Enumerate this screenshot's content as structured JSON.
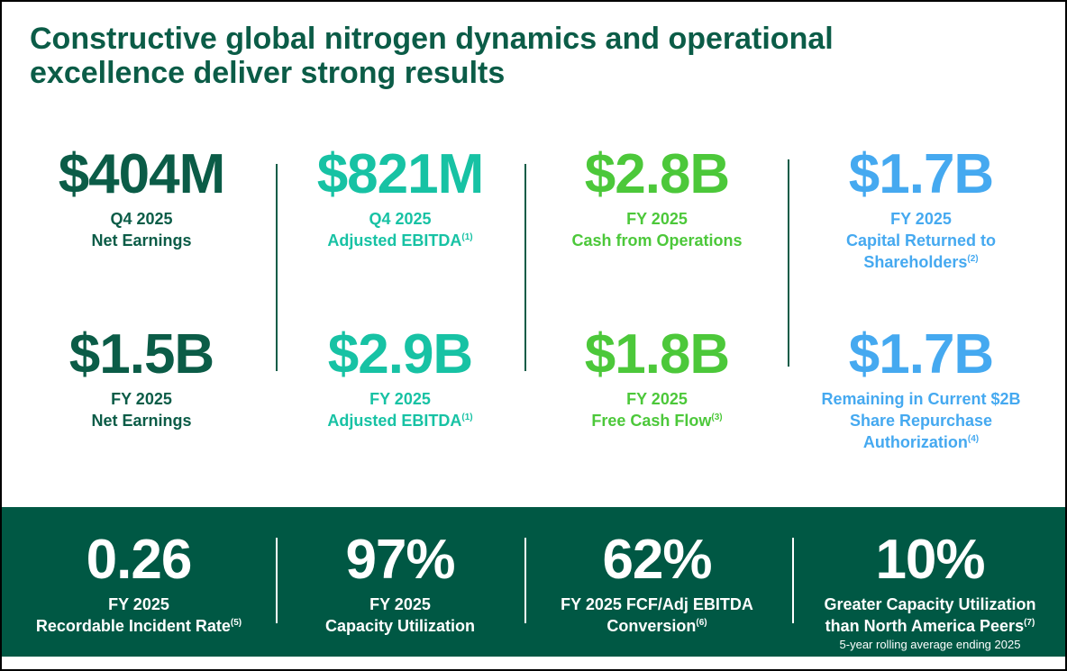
{
  "title": "Constructive global nitrogen dynamics and operational excellence deliver strong results",
  "columns": [
    {
      "metrics": [
        {
          "value": "$404M",
          "lines": [
            "Q4 2025",
            "Net Earnings"
          ]
        },
        {
          "value": "$1.5B",
          "lines": [
            "FY 2025",
            "Net Earnings"
          ]
        }
      ]
    },
    {
      "metrics": [
        {
          "value": "$821M",
          "lines": [
            "Q4 2025",
            "Adjusted EBITDA"
          ],
          "note": "(1)"
        },
        {
          "value": "$2.9B",
          "lines": [
            "FY 2025",
            "Adjusted EBITDA"
          ],
          "note": "(1)"
        }
      ]
    },
    {
      "metrics": [
        {
          "value": "$2.8B",
          "lines": [
            "FY 2025",
            "Cash from Operations"
          ]
        },
        {
          "value": "$1.8B",
          "lines": [
            "FY 2025",
            "Free Cash Flow"
          ],
          "note": "(3)"
        }
      ]
    },
    {
      "metrics": [
        {
          "value": "$1.7B",
          "lines": [
            "FY 2025",
            "Capital Returned to",
            "Shareholders"
          ],
          "note": "(2)"
        },
        {
          "value": "$1.7B",
          "lines": [
            "Remaining in Current $2B",
            "Share Repurchase",
            "Authorization"
          ],
          "note": "(4)"
        }
      ]
    }
  ],
  "band": [
    {
      "value": "0.26",
      "lines": [
        "FY 2025",
        "Recordable Incident Rate"
      ],
      "note": "(5)"
    },
    {
      "value": "97%",
      "lines": [
        "FY 2025",
        "Capacity Utilization"
      ]
    },
    {
      "value": "62%",
      "lines": [
        "FY 2025 FCF/Adj EBITDA",
        "Conversion"
      ],
      "note": "(6)"
    },
    {
      "value": "10%",
      "lines": [
        "Greater Capacity Utilization",
        "than North America Peers"
      ],
      "note": "(7)",
      "small": "5-year rolling average ending 2025"
    }
  ]
}
